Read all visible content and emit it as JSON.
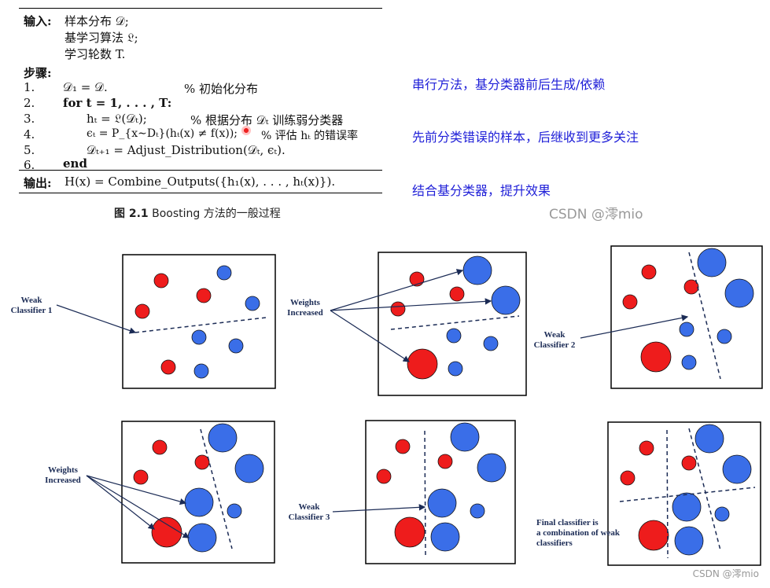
{
  "algorithm": {
    "input_label": "输入:",
    "inputs": [
      "样本分布 𝒟;",
      "基学习算法 𝔏;",
      "学习轮数 T."
    ],
    "steps_label": "步骤:",
    "steps": [
      {
        "num": "1.",
        "code": "𝒟₁ = 𝒟.",
        "comment": "% 初始化分布"
      },
      {
        "num": "2.",
        "code": "for t = 1, . . . , T:",
        "comment": ""
      },
      {
        "num": "3.",
        "code": "hₜ = 𝔏(𝒟ₜ);",
        "comment": "% 根据分布 𝒟ₜ 训练弱分类器"
      },
      {
        "num": "4.",
        "code": "ϵₜ = P_{x∼Dₜ}(hₜ(x) ≠ f(x));",
        "comment": "% 评估 hₜ 的错误率"
      },
      {
        "num": "5.",
        "code": "𝒟ₜ₊₁ = Adjust_Distribution(𝒟ₜ, ϵₜ).",
        "comment": ""
      },
      {
        "num": "6.",
        "code": "end",
        "comment": ""
      }
    ],
    "output_label": "输出:",
    "output": "H(x) = Combine_Outputs({h₁(x), . . . , hₜ(x)})."
  },
  "caption": {
    "fig": "图 2.1",
    "text": "Boosting 方法的一般过程"
  },
  "notes": [
    "串行方法，基分类器前后生成/依赖",
    "先前分类错误的样本，后继收到更多关注",
    "结合基分类器，提升效果"
  ],
  "watermark_top": "CSDN @澪mio",
  "watermark_bottom": "CSDN @澪mio",
  "panel_labels": {
    "p1": [
      "Weak",
      "Classifier 1"
    ],
    "p2": [
      "Weights",
      "Increased"
    ],
    "p3": [
      "Weak",
      "Classifier 2"
    ],
    "p4": [
      "Weights",
      "Increased"
    ],
    "p5": [
      "Weak",
      "Classifier 3"
    ],
    "p6": [
      "Final classifier is",
      "a combination of weak",
      "classifiers"
    ]
  },
  "colors": {
    "red": "#ee1c1c",
    "blue": "#3a6ee8",
    "line": "#1b2b55"
  }
}
